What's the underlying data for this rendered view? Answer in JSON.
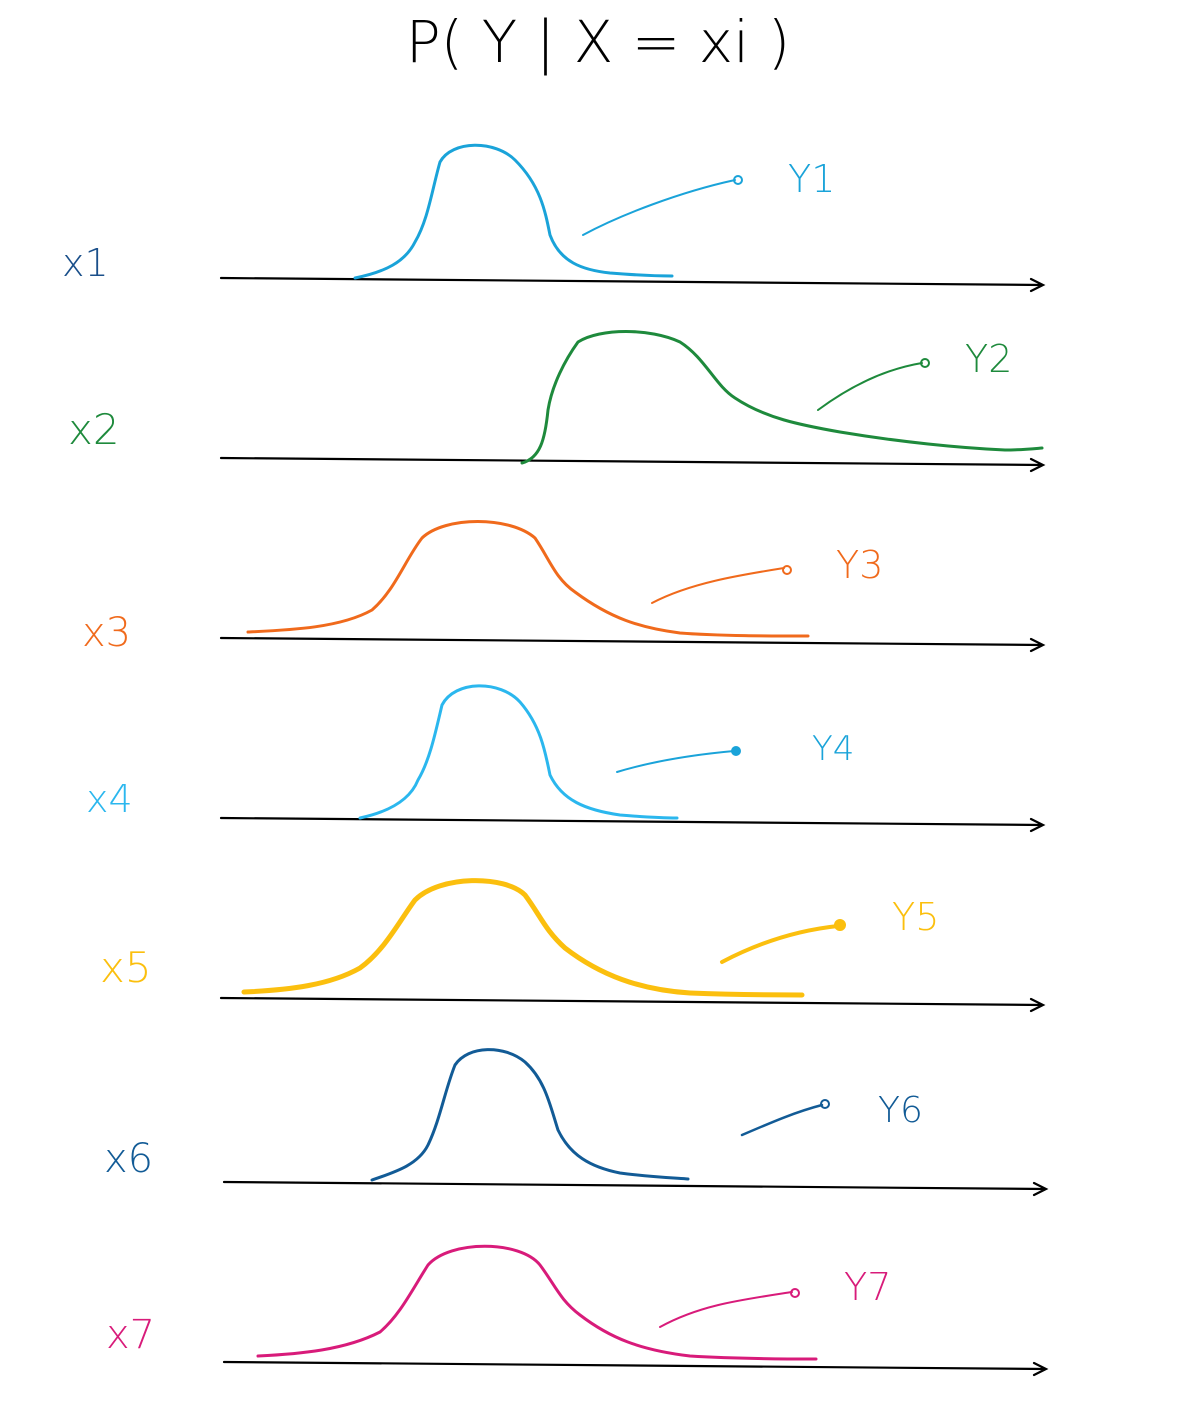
{
  "title": "P( Y | X = xi )",
  "rows": [
    {
      "id": "x1",
      "x_label": "x1",
      "y_label": "Y1",
      "color": "#1aa3d9"
    },
    {
      "id": "x2",
      "x_label": "x2",
      "y_label": "Y2",
      "color": "#1e8a3c"
    },
    {
      "id": "x3",
      "x_label": "x3",
      "y_label": "Y3",
      "color": "#f06a1c"
    },
    {
      "id": "x4",
      "x_label": "x4",
      "y_label": "Y4",
      "color": "#2bb7ee"
    },
    {
      "id": "x5",
      "x_label": "x5",
      "y_label": "Y5",
      "color": "#fbbf0e"
    },
    {
      "id": "x6",
      "x_label": "x6",
      "y_label": "Y6",
      "color": "#125b96"
    },
    {
      "id": "x7",
      "x_label": "x7",
      "y_label": "Y7",
      "color": "#d81b7a"
    }
  ]
}
